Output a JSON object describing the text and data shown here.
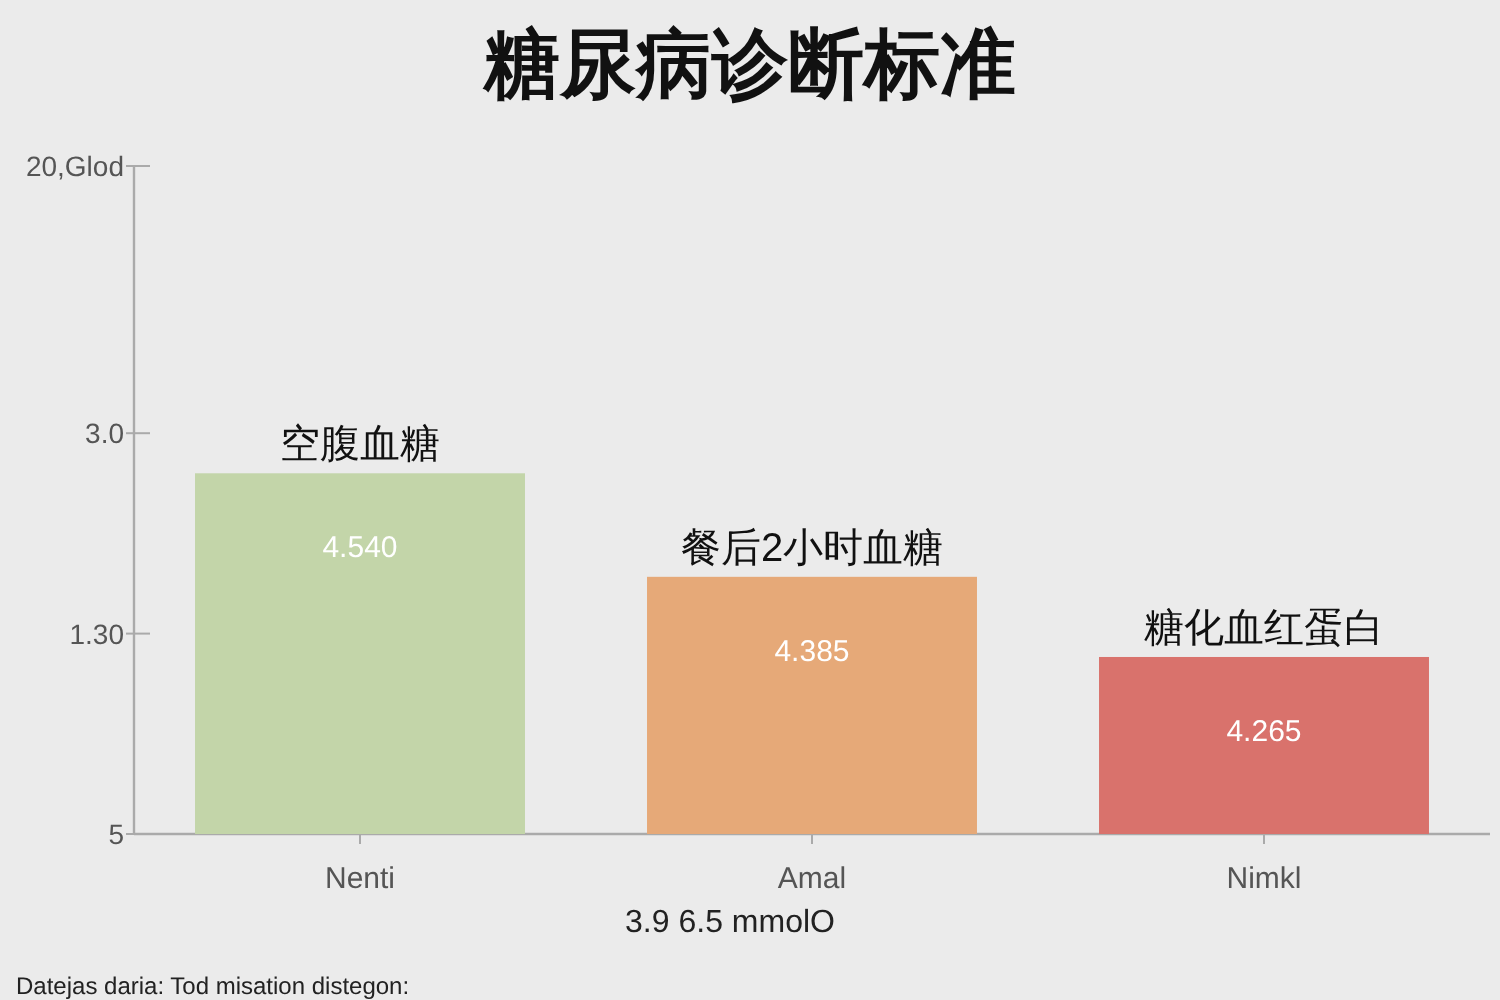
{
  "chart_data": {
    "type": "bar",
    "title": "糖尿病诊断标准",
    "xlabel": "3.9 6.5 mmolO",
    "ylim": [
      4,
      5
    ],
    "categories": [
      "Nenti",
      "Amal",
      "Nimkl"
    ],
    "values": [
      4.54,
      4.385,
      4.265
    ],
    "colors": [
      "#c3d5a9",
      "#e6a978",
      "#d9726c"
    ],
    "value_labels": [
      "4.540",
      "4.385",
      "4.265"
    ],
    "annotations": [
      {
        "text": "空腹血糖",
        "x": "Nenti",
        "y": 4.54
      },
      {
        "text": "餐后2小时血糖",
        "x": "Amal",
        "y": 4.385
      },
      {
        "text": "糖化血红蛋白",
        "x": "Nimkl",
        "y": 4.265
      },
      "5",
      "1.30",
      "3.0",
      "20,Glod",
      "Datejas daria: Tod misation distegon:"
    ]
  }
}
